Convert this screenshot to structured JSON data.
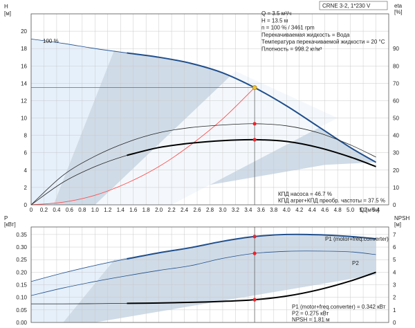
{
  "model_box": "CRNE 3-2, 1*230 V",
  "info_text": [
    "Q = 3.5 м³/ч",
    "H = 13.5 м",
    "n = 100 % / 3461 rpm",
    "Перекачиваемая жидкость = Вода",
    "Температура перекачиваемой жидкости = 20 °C",
    "Плотность = 998.2 кг/м³"
  ],
  "efficiency_text": [
    "КПД насоса = 46.7 %",
    "КПД агрег+КПД преобр. частоты = 37.5 %"
  ],
  "power_text": [
    "P1 (motor+freq.converter) = 0.342 кВт",
    "P2 = 0.275 кВт",
    "NPSH = 1.81 м"
  ],
  "speed_label": "100 %",
  "colors": {
    "curve_blue": "#1f4e8c",
    "curve_black": "#000000",
    "system_curve": "#ff4a4a",
    "op_point": "#e8242b",
    "duty_marker": "#f2c230",
    "shade_dark": "#cfdbe7",
    "shade_light": "#e6f0fa",
    "grid": "#c9c9c9"
  },
  "chart_data": [
    {
      "type": "line",
      "x": [
        0,
        0.5,
        1.0,
        1.5,
        2.0,
        2.5,
        3.0,
        3.5,
        4.0,
        4.5,
        5.0,
        5.4
      ],
      "xlabel": "Q [м³/ч]",
      "x_ticks": [
        "0",
        "0.2",
        "0.4",
        "0.6",
        "0.8",
        "1.0",
        "1.2",
        "1.4",
        "1.6",
        "1.8",
        "2.0",
        "2.2",
        "2.4",
        "2.6",
        "2.8",
        "3.0",
        "3.2",
        "3.4",
        "3.6",
        "3.8",
        "4.0",
        "4.2",
        "4.4",
        "4.6",
        "4.8",
        "5.0",
        "5.2",
        "5.4"
      ],
      "xlim": [
        0,
        5.6
      ],
      "ylabel_left": "H",
      "yunit_left": "[м]",
      "ylim_left": [
        0,
        22
      ],
      "y_ticks_left": [
        "0",
        "2",
        "4",
        "6",
        "8",
        "10",
        "12",
        "14",
        "16",
        "18",
        "20"
      ],
      "ylabel_right": "eta",
      "yunit_right": "[%]",
      "ylim_right": [
        0,
        110
      ],
      "y_ticks_right": [
        "0",
        "10",
        "20",
        "30",
        "40",
        "50",
        "60",
        "70",
        "80",
        "90"
      ],
      "series": [
        {
          "name": "H",
          "axis": "left",
          "values": [
            19.1,
            18.6,
            18.0,
            17.5,
            17.0,
            16.3,
            15.2,
            13.5,
            11.4,
            9.0,
            6.6,
            4.9
          ]
        },
        {
          "name": "",
          "axis": "right",
          "values": [
            0,
            17,
            28,
            36,
            41.5,
            44.5,
            46,
            46.7,
            45.5,
            41.5,
            34.5,
            27.5
          ]
        },
        {
          "name": "",
          "axis": "right",
          "values": [
            0,
            13,
            22,
            28.5,
            33,
            35.5,
            37,
            37.5,
            36.5,
            33,
            27.5,
            22
          ]
        },
        {
          "name": "",
          "axis": "left",
          "values": [
            0,
            0.3,
            1.1,
            2.5,
            4.4,
            6.9,
            9.9,
            13.5,
            null,
            null,
            null,
            null
          ]
        }
      ],
      "operating_point": {
        "Q": 3.5,
        "H": 13.5,
        "eta_pump": 46.7,
        "eta_total": 37.5
      }
    },
    {
      "type": "line",
      "x": [
        0,
        0.5,
        1.0,
        1.5,
        2.0,
        2.5,
        3.0,
        3.5,
        4.0,
        4.5,
        5.0,
        5.4
      ],
      "xlim": [
        0,
        5.6
      ],
      "ylabel_left": "P",
      "yunit_left": "[кВт]",
      "ylim_left": [
        0,
        0.38
      ],
      "y_ticks_left": [
        "0.00",
        "0.05",
        "0.10",
        "0.15",
        "0.20",
        "0.25",
        "0.30",
        "0.35"
      ],
      "ylabel_right": "NPSH",
      "yunit_right": "[м]",
      "ylim_right": [
        0,
        7.6
      ],
      "y_ticks_right": [
        "0",
        "1",
        "2",
        "3",
        "4",
        "5",
        "6",
        "7"
      ],
      "series": [
        {
          "name": "P1 (motor+freq.converter)",
          "axis": "left",
          "values": [
            0.163,
            0.197,
            0.227,
            0.253,
            0.277,
            0.298,
            0.323,
            0.342,
            0.35,
            0.349,
            0.342,
            0.333
          ]
        },
        {
          "name": "P2",
          "axis": "left",
          "values": [
            0.107,
            0.137,
            0.163,
            0.186,
            0.207,
            0.226,
            0.255,
            0.275,
            0.283,
            0.284,
            0.281,
            0.27
          ]
        },
        {
          "name": "NPSH",
          "axis": "right",
          "values": [
            1.48,
            1.48,
            1.49,
            1.52,
            1.55,
            1.6,
            1.68,
            1.81,
            2.1,
            2.6,
            3.3,
            4.0
          ]
        }
      ],
      "operating_point": {
        "Q": 3.5,
        "P1": 0.342,
        "P2": 0.275,
        "NPSH": 1.81
      }
    }
  ]
}
